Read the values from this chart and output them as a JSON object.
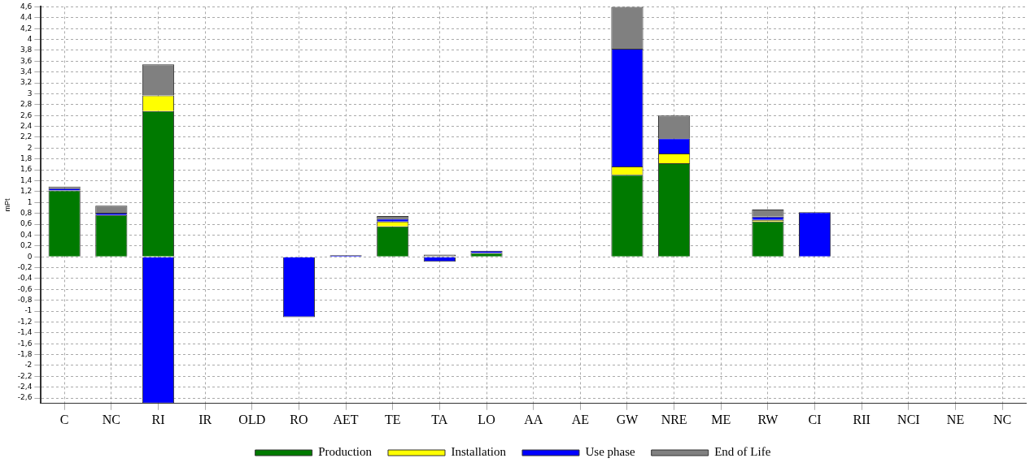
{
  "chart_data": {
    "type": "bar",
    "stacked": true,
    "ylabel": "mPt",
    "categories": [
      "C",
      "NC",
      "RI",
      "IR",
      "OLD",
      "RO",
      "AET",
      "TE",
      "TA",
      "LO",
      "AA",
      "AE",
      "GW",
      "NRE",
      "ME",
      "RW",
      "CI",
      "RII",
      "NCI",
      "NE",
      "NC"
    ],
    "series": [
      {
        "name": "Production",
        "color": "#007a00",
        "values": [
          1.22,
          0.77,
          2.68,
          0,
          0,
          0,
          0,
          0.56,
          0,
          0.07,
          0,
          0,
          1.51,
          1.72,
          0,
          0.65,
          0,
          0,
          0,
          0,
          0
        ]
      },
      {
        "name": "Installation",
        "color": "#ffff00",
        "values": [
          0,
          0,
          0.29,
          0,
          0,
          0,
          0,
          0.09,
          0,
          0,
          0,
          0,
          0.15,
          0.18,
          0,
          0.03,
          0,
          0,
          0,
          0,
          0
        ]
      },
      {
        "name": "Use phase",
        "color": "#0000ff",
        "values": [
          0.04,
          0.04,
          -2.7,
          0,
          0,
          -1.11,
          0.03,
          0.05,
          -0.09,
          0.04,
          0,
          0,
          2.17,
          0.28,
          0,
          0.06,
          0.82,
          0,
          0,
          0,
          0
        ]
      },
      {
        "name": "End of Life",
        "color": "#808080",
        "values": [
          0.03,
          0.13,
          0.57,
          0,
          0,
          0,
          0,
          0.05,
          0.04,
          0,
          0,
          0,
          0.77,
          0.42,
          0,
          0.13,
          0,
          0,
          0,
          0,
          0
        ]
      }
    ],
    "ylim": [
      -2.7,
      4.6
    ],
    "yticks": [
      {
        "value": -2.6,
        "label": "-2,6"
      },
      {
        "value": -2.4,
        "label": "-2,4"
      },
      {
        "value": -2.2,
        "label": "-2,2"
      },
      {
        "value": -2,
        "label": "-2"
      },
      {
        "value": -1.8,
        "label": "-1,8"
      },
      {
        "value": -1.6,
        "label": "-1,6"
      },
      {
        "value": -1.4,
        "label": "-1,4"
      },
      {
        "value": -1.2,
        "label": "-1,2"
      },
      {
        "value": -1,
        "label": "-1"
      },
      {
        "value": -0.8,
        "label": "-0,8"
      },
      {
        "value": -0.6,
        "label": "-0,6"
      },
      {
        "value": -0.4,
        "label": "-0,4"
      },
      {
        "value": -0.2,
        "label": "-0,2"
      },
      0,
      {
        "value": 0.2,
        "label": "0,2"
      },
      {
        "value": 0.4,
        "label": "0,4"
      },
      {
        "value": 0.6,
        "label": "0,6"
      },
      {
        "value": 0.8,
        "label": "0,8"
      },
      1,
      {
        "value": 1.2,
        "label": "1,2"
      },
      {
        "value": 1.4,
        "label": "1,4"
      },
      {
        "value": 1.6,
        "label": "1,6"
      },
      {
        "value": 1.8,
        "label": "1,8"
      },
      2,
      {
        "value": 2.2,
        "label": "2,2"
      },
      {
        "value": 2.4,
        "label": "2,4"
      },
      {
        "value": 2.6,
        "label": "2,6"
      },
      {
        "value": 2.8,
        "label": "2,8"
      },
      3,
      {
        "value": 3.2,
        "label": "3,2"
      },
      {
        "value": 3.4,
        "label": "3,4"
      },
      {
        "value": 3.6,
        "label": "3,6"
      },
      {
        "value": 3.8,
        "label": "3,8"
      },
      4,
      {
        "value": 4.2,
        "label": "4,2"
      },
      {
        "value": 4.4,
        "label": "4,4"
      },
      {
        "value": 4.6,
        "label": "4,6"
      }
    ],
    "grid": true,
    "legend": "bottom"
  }
}
